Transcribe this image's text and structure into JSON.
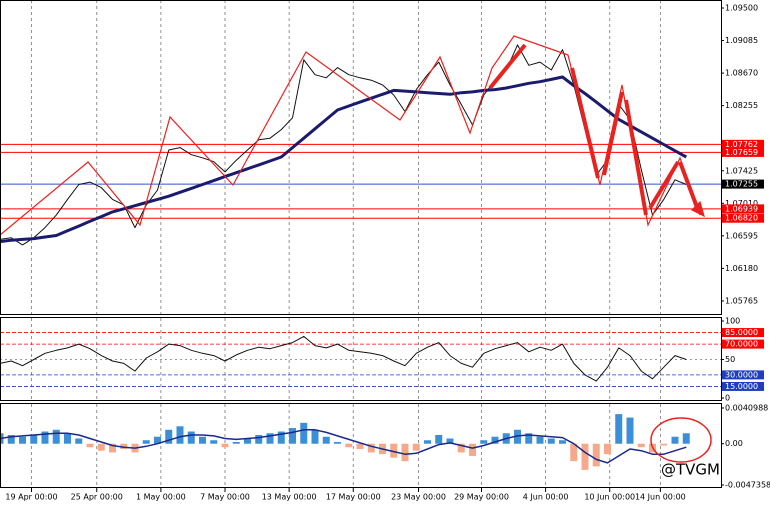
{
  "chart_data": [
    {
      "type": "line",
      "ylim": [
        1.05586,
        1.09602
      ],
      "yticks": [
        {
          "value": 1.095,
          "label": "1.09500"
        },
        {
          "value": 1.09085,
          "label": "1.09085"
        },
        {
          "value": 1.0867,
          "label": "1.08670"
        },
        {
          "value": 1.08255,
          "label": "1.08255"
        },
        {
          "value": 1.07425,
          "label": "1.07425"
        },
        {
          "value": 1.0701,
          "label": "1.07010"
        },
        {
          "value": 1.06595,
          "label": "1.06595"
        },
        {
          "value": 1.0618,
          "label": "1.06180"
        },
        {
          "value": 1.05765,
          "label": "1.05765"
        }
      ],
      "levels": [
        {
          "value": 1.07762,
          "label": "1.07762",
          "color": "#ff0000"
        },
        {
          "value": 1.07659,
          "label": "1.07659",
          "color": "#ff0000"
        },
        {
          "value": 1.07255,
          "label": "1.07255",
          "color": "#000000",
          "line": "#3355cc"
        },
        {
          "value": 1.06939,
          "label": "1.06939",
          "color": "#ff0000"
        },
        {
          "value": 1.0682,
          "label": "1.06820",
          "color": "#ff0000"
        }
      ],
      "series": [
        {
          "color": "#111111",
          "width": 1,
          "values": [
            1.0655,
            1.0657,
            1.0648,
            1.0657,
            1.067,
            1.0686,
            1.0706,
            1.0725,
            1.0728,
            1.0721,
            1.0706,
            1.0699,
            1.067,
            1.0699,
            1.0718,
            1.0769,
            1.0772,
            1.0763,
            1.0759,
            1.0754,
            1.0741,
            1.0756,
            1.0769,
            1.0782,
            1.0784,
            1.0795,
            1.081,
            1.0884,
            1.0865,
            1.0861,
            1.0874,
            1.0865,
            1.0861,
            1.0858,
            1.0852,
            1.0839,
            1.0818,
            1.0846,
            1.0865,
            1.0881,
            1.0852,
            1.0827,
            1.0801,
            1.0839,
            1.0858,
            1.0871,
            1.0903,
            1.0877,
            1.0881,
            1.0871,
            1.0897,
            1.0852,
            1.0795,
            1.0737,
            1.0756,
            1.0827,
            1.0808,
            1.0744,
            1.0686,
            1.0706,
            1.0731,
            1.0725
          ]
        },
        {
          "color": "#1b1b6e",
          "width": 3,
          "values": [
            1.0652,
            1.0654,
            1.0655,
            1.0656,
            1.0658,
            1.066,
            1.0666,
            1.0672,
            1.0678,
            1.0684,
            1.069,
            1.0694,
            1.0698,
            1.0702,
            1.0706,
            1.071,
            1.0715,
            1.072,
            1.0725,
            1.073,
            1.0735,
            1.074,
            1.0745,
            1.075,
            1.0755,
            1.076,
            1.0772,
            1.0784,
            1.0796,
            1.0808,
            1.082,
            1.0825,
            1.083,
            1.0835,
            1.084,
            1.0845,
            1.0844,
            1.0843,
            1.0842,
            1.0841,
            1.084,
            1.0842,
            1.0843,
            1.0845,
            1.0846,
            1.0848,
            1.0851,
            1.0854,
            1.0856,
            1.0859,
            1.0862,
            1.0851,
            1.0841,
            1.083,
            1.0819,
            1.0808,
            1.08,
            1.0792,
            1.0784,
            1.0776,
            1.0768,
            1.076
          ]
        }
      ]
    },
    {
      "type": "line",
      "ylim": [
        0,
        100
      ],
      "yticks": [
        100,
        50,
        0
      ],
      "levels": [
        {
          "value": 85,
          "label": "85.0000",
          "color": "#ff0000"
        },
        {
          "value": 70,
          "label": "70.0000",
          "color": "#ff0000"
        },
        {
          "value": 30,
          "label": "30.0000",
          "color": "#1f3fbf"
        },
        {
          "value": 15,
          "label": "15.0000",
          "color": "#1f3fbf"
        }
      ],
      "series": [
        {
          "color": "#111111",
          "width": 1,
          "values": [
            45,
            48,
            42,
            50,
            58,
            62,
            65,
            70,
            64,
            55,
            48,
            45,
            35,
            52,
            60,
            70,
            68,
            62,
            58,
            55,
            48,
            56,
            62,
            66,
            64,
            68,
            72,
            80,
            68,
            65,
            70,
            62,
            60,
            58,
            55,
            48,
            42,
            58,
            66,
            72,
            55,
            45,
            40,
            58,
            64,
            68,
            72,
            60,
            66,
            62,
            70,
            45,
            30,
            22,
            40,
            65,
            55,
            35,
            25,
            40,
            55,
            50
          ]
        }
      ]
    },
    {
      "type": "bar",
      "ylim": [
        -0.0047358,
        0.0040988
      ],
      "yticks": [
        {
          "value": 0.0040988,
          "label": "0.0040988"
        },
        {
          "value": 0,
          "label": "0.00"
        },
        {
          "value": -0.0047358,
          "label": "-0.0047358"
        }
      ],
      "colors": {
        "positive": "#3b8fd8",
        "negative": "#f5a98a"
      },
      "values": [
        0.0012,
        0.001,
        0.0008,
        0.001,
        0.0014,
        0.0016,
        0.0012,
        0.0006,
        -0.0004,
        -0.0008,
        -0.001,
        -0.0006,
        -0.001,
        0.0004,
        0.0008,
        0.0016,
        0.002,
        0.0014,
        0.0008,
        0.0004,
        -0.0004,
        0.0002,
        0.0006,
        0.001,
        0.0012,
        0.0014,
        0.0018,
        0.0024,
        0.0016,
        0.0008,
        0.0002,
        -0.0004,
        -0.0006,
        -0.001,
        -0.0012,
        -0.0016,
        -0.002,
        -0.0008,
        0.0004,
        0.001,
        0.0006,
        -0.001,
        -0.0014,
        0.0004,
        0.0008,
        0.0012,
        0.0016,
        0.0012,
        0.0008,
        0.0006,
        0.0004,
        -0.002,
        -0.003,
        -0.0026,
        -0.0012,
        0.0034,
        0.003,
        -0.0004,
        -0.001,
        -0.0002,
        0.0008,
        0.0012
      ],
      "series": [
        {
          "color": "#1b2a8a",
          "width": 1.5,
          "values": [
            0.0006,
            0.0008,
            0.0009,
            0.001,
            0.0011,
            0.0012,
            0.0012,
            0.001,
            0.0006,
            0.0002,
            -0.0002,
            -0.0004,
            -0.0005,
            -0.0003,
            0,
            0.0004,
            0.0008,
            0.001,
            0.001,
            0.0009,
            0.0006,
            0.0005,
            0.0006,
            0.0007,
            0.0009,
            0.0011,
            0.0013,
            0.0016,
            0.0016,
            0.0013,
            0.0009,
            0.0005,
            0.0001,
            -0.0003,
            -0.0006,
            -0.0009,
            -0.0012,
            -0.0011,
            -0.0006,
            -0.0001,
            0.0001,
            -0.0002,
            -0.0005,
            -0.0002,
            0.0002,
            0.0006,
            0.0009,
            0.001,
            0.0009,
            0.0008,
            0.0007,
            0,
            -0.001,
            -0.0018,
            -0.0022,
            -0.0014,
            -0.0006,
            -0.0008,
            -0.0012,
            -0.0012,
            -0.0008,
            -0.0004
          ]
        }
      ],
      "xlim": [
        0,
        64
      ],
      "xticks": [
        {
          "value": 2.8,
          "label": "19 Apr 00:00"
        },
        {
          "value": 8.6,
          "label": "25 Apr 00:00"
        },
        {
          "value": 14.3,
          "label": "1 May 00:00"
        },
        {
          "value": 20,
          "label": "7 May 00:00"
        },
        {
          "value": 25.7,
          "label": "13 May 00:00"
        },
        {
          "value": 31.4,
          "label": "17 May 00:00"
        },
        {
          "value": 37.2,
          "label": "23 May 00:00"
        },
        {
          "value": 42.8,
          "label": "29 May 00:00"
        },
        {
          "value": 48.5,
          "label": "4 Jun 00:00"
        },
        {
          "value": 54.2,
          "label": "10 Jun 00:00"
        },
        {
          "value": 58.7,
          "label": "14 Jun 00:00"
        }
      ],
      "watermark": "@TVGM"
    }
  ]
}
